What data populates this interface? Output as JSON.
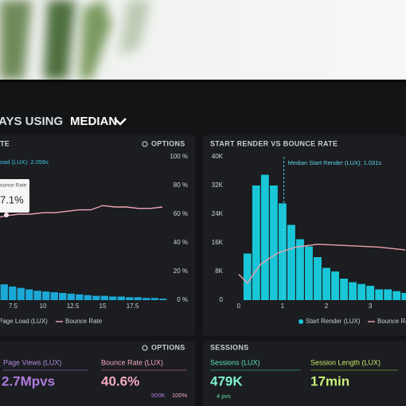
{
  "header": {
    "title_light": "AYS USING",
    "title_bold": "MEDIAN"
  },
  "chart_data": [
    {
      "type": "histogram",
      "title": "TE",
      "options": "OPTIONS",
      "annotation": "oad (LUX): 2.056s",
      "tooltip": {
        "label": "ounce Rate",
        "value": "7.1%"
      },
      "y_axis_side": "right",
      "bins": [
        6.4,
        7.1,
        7.8,
        8.5,
        9.2,
        9.9,
        10.6,
        11.3,
        12.0,
        12.7,
        13.4,
        14.1,
        14.8,
        15.5,
        16.2,
        16.9,
        17.6,
        18.3,
        19.0,
        19.7,
        20.4
      ],
      "xlim": [
        6.4,
        20.4
      ],
      "xticks": [
        7.5,
        10,
        12.5,
        15,
        17.5
      ],
      "ylim": [
        0,
        100
      ],
      "yticks": [
        {
          "value": 0,
          "label": "0 %"
        },
        {
          "value": 20,
          "label": "20 %"
        },
        {
          "value": 40,
          "label": "40 %"
        },
        {
          "value": 60,
          "label": "60 %"
        },
        {
          "value": 80,
          "label": "80 %"
        },
        {
          "value": 100,
          "label": "100 %"
        }
      ],
      "series": [
        {
          "name": "Page Load (LUX)",
          "color": "#1aa9d6",
          "values": [
            11,
            9.5,
            8.5,
            7.5,
            6.5,
            6,
            5.5,
            5,
            4.5,
            4,
            3.5,
            3,
            3,
            2.5,
            2.5,
            2,
            2,
            1.5,
            1.5,
            1
          ]
        },
        {
          "name": "Bounce Rate",
          "color": "#f0a5b5",
          "x": [
            6.4,
            7,
            8,
            9,
            10,
            11,
            12,
            13,
            14,
            15,
            16,
            17,
            18,
            19,
            20
          ],
          "values": [
            58,
            59,
            60,
            60,
            61,
            61,
            62,
            63,
            63,
            66,
            65,
            65,
            64,
            64,
            65
          ]
        }
      ]
    },
    {
      "type": "histogram",
      "title": "START RENDER VS BOUNCE RATE",
      "annotation": "Median Start Render (LUX): 1.031s",
      "median": 1.031,
      "y_axis_side": "left",
      "bins": [
        0.1,
        0.3,
        0.5,
        0.7,
        0.9,
        1.1,
        1.3,
        1.5,
        1.7,
        1.9,
        2.1,
        2.3,
        2.5,
        2.7,
        2.9,
        3.1,
        3.3,
        3.5,
        3.7,
        3.9,
        4.1
      ],
      "xlim": [
        -0.05,
        3.85
      ],
      "xticks": [
        0,
        1,
        2,
        3
      ],
      "ylim": [
        0,
        40000
      ],
      "yticks": [
        0,
        {
          "value": 8000,
          "label": "8K"
        },
        {
          "value": 16000,
          "label": "16K"
        },
        {
          "value": 24000,
          "label": "24K"
        },
        {
          "value": 32000,
          "label": "32K"
        },
        {
          "value": 40000,
          "label": "40K"
        }
      ],
      "y2lim": [
        0,
        100
      ],
      "series": [
        {
          "name": "Start Render (LUX)",
          "color": "#19c6d8",
          "values": [
            13000,
            32000,
            35000,
            32000,
            27000,
            21000,
            17000,
            15000,
            12000,
            9000,
            8000,
            6000,
            5000,
            4500,
            4000,
            3000,
            3000,
            2500,
            2000,
            2000
          ]
        },
        {
          "name": "Bounce Rate",
          "color": "#e9a2ad",
          "axis": "y2",
          "x": [
            0,
            0.2,
            0.5,
            0.9,
            1.3,
            1.8,
            2.5,
            3.2,
            3.8
          ],
          "values": [
            18,
            12,
            25,
            33,
            37,
            39,
            38,
            37,
            35
          ]
        }
      ]
    }
  ],
  "bottom": {
    "left": {
      "options": "OPTIONS",
      "stats": [
        {
          "label": "Page Views (LUX)",
          "value": "2.7Mpvs"
        },
        {
          "label": "Bounce Rate (LUX)",
          "value": "40.6%"
        }
      ],
      "scale": [
        "500K",
        "100%"
      ]
    },
    "right": {
      "title": "SESSIONS",
      "stats": [
        {
          "label": "Sessions (LUX)",
          "value": "479K",
          "sub": "4 pvs"
        },
        {
          "label": "Session Length (LUX)",
          "value": "17min"
        }
      ]
    }
  }
}
